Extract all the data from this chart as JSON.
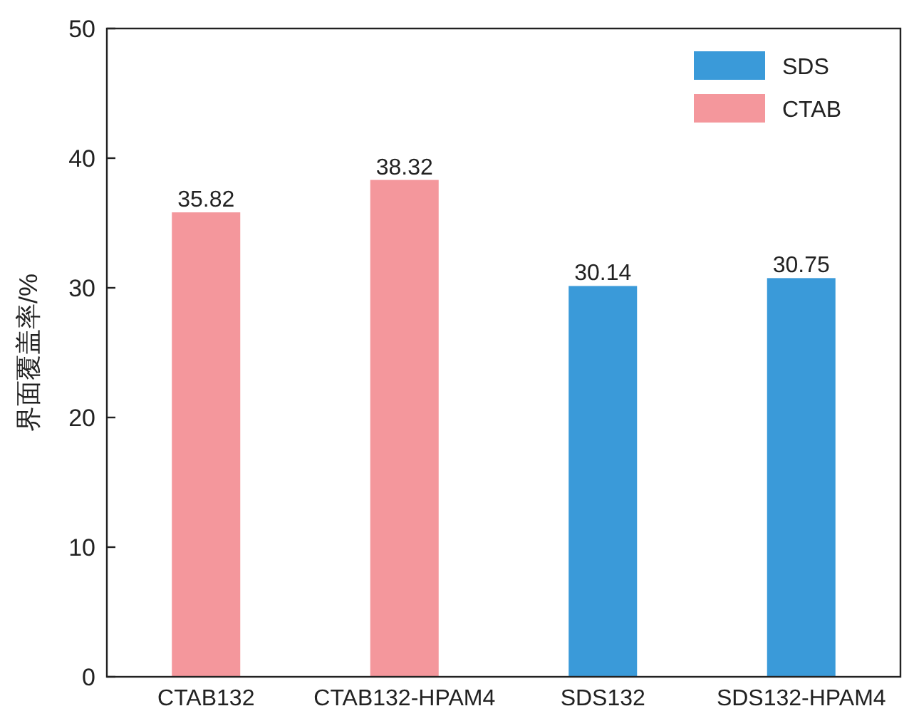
{
  "chart_data": {
    "type": "bar",
    "categories": [
      "CTAB132",
      "CTAB132-HPAM4",
      "SDS132",
      "SDS132-HPAM4"
    ],
    "series": [
      {
        "name": "SDS",
        "color": "#3a9ad9",
        "values": [
          null,
          null,
          30.14,
          30.75
        ]
      },
      {
        "name": "CTAB",
        "color": "#f4979c",
        "values": [
          35.82,
          38.32,
          null,
          null
        ]
      }
    ],
    "ylabel": "界面覆盖率/%",
    "ylim": [
      0,
      50
    ],
    "yticks": [
      0,
      10,
      20,
      30,
      40,
      50
    ],
    "data_labels": true,
    "legend": "top right"
  }
}
